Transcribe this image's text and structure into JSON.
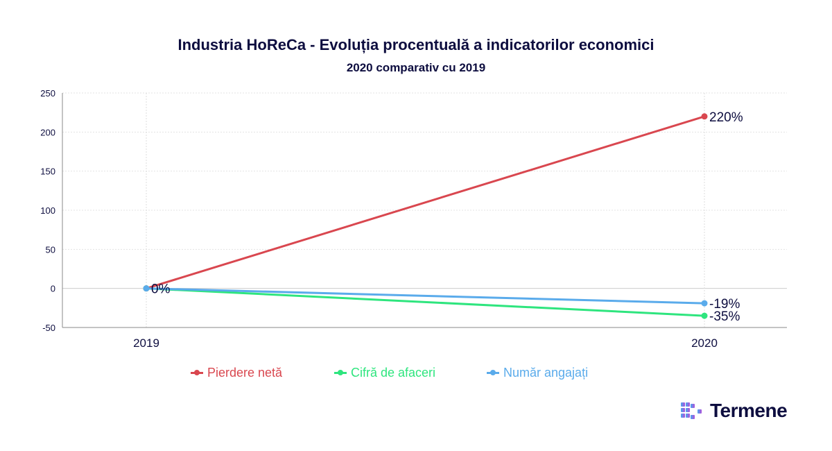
{
  "chart_data": {
    "type": "line",
    "title": "Industria HoReCa - Evoluția procentuală a indicatorilor economici",
    "subtitle": "2020 comparativ cu 2019",
    "categories": [
      "2019",
      "2020"
    ],
    "ylim": [
      -50,
      250
    ],
    "yticks": [
      -50,
      0,
      50,
      100,
      150,
      200,
      250
    ],
    "grid": true,
    "legend_position": "bottom",
    "series": [
      {
        "name": "Pierdere netă",
        "values": [
          0,
          220
        ],
        "labels": [
          "",
          "220%"
        ],
        "color": "#d9474f"
      },
      {
        "name": "Cifră de afaceri",
        "values": [
          0,
          -35
        ],
        "labels": [
          "",
          "-35%"
        ],
        "color": "#2ee57e"
      },
      {
        "name": "Număr angajați",
        "values": [
          0,
          -19
        ],
        "labels": [
          "0%",
          "-19%"
        ],
        "color": "#5aabeb"
      }
    ]
  },
  "logo": {
    "text": "Termene"
  }
}
